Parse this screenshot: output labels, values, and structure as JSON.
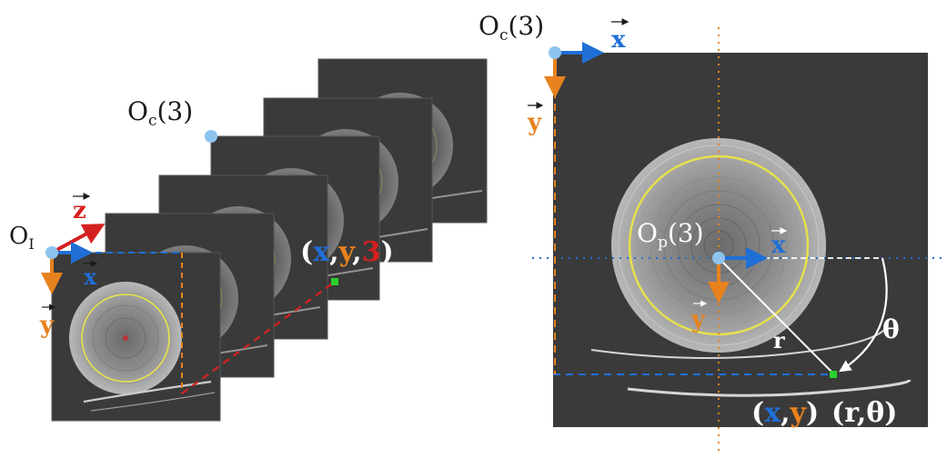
{
  "colors": {
    "background": "#ffffff",
    "slice_fill": "#3a3a3a",
    "slice_edge": "#5a5a5a",
    "origin_dot": "#8cc4ee",
    "axis_blue": "#1f6fd6",
    "axis_orange": "#e8821e",
    "axis_red": "#d62020",
    "pith_green": "#2bd12b",
    "ring_yellow": "#e6e24a",
    "white": "#ffffff",
    "label_dark": "#1a1a1a"
  },
  "left": {
    "origin_image_label": "O",
    "origin_image_sub": "I",
    "origin_slice_label": "O",
    "origin_slice_sub": "c",
    "origin_slice_index": "(3)",
    "axis_x": "x",
    "axis_y": "y",
    "axis_z": "z",
    "point_open": "(",
    "point_x": "x",
    "point_c1": ",",
    "point_y": "y",
    "point_c2": ",",
    "point_z": "3",
    "point_close": ")"
  },
  "right": {
    "origin_slice_label": "O",
    "origin_slice_sub": "c",
    "origin_slice_index": "(3)",
    "axis_x": "x",
    "axis_y": "y",
    "pith_label": "O",
    "pith_sub": "p",
    "pith_index": "(3)",
    "pith_axis_x": "x",
    "pith_axis_y": "y",
    "radius_label": "r",
    "angle_label": "θ",
    "cart_open": "(",
    "cart_x": "x",
    "cart_comma": ",",
    "cart_y": "y",
    "cart_close": ")",
    "polar_text": "(r,",
    "polar_theta": "θ",
    "polar_close": ")"
  }
}
